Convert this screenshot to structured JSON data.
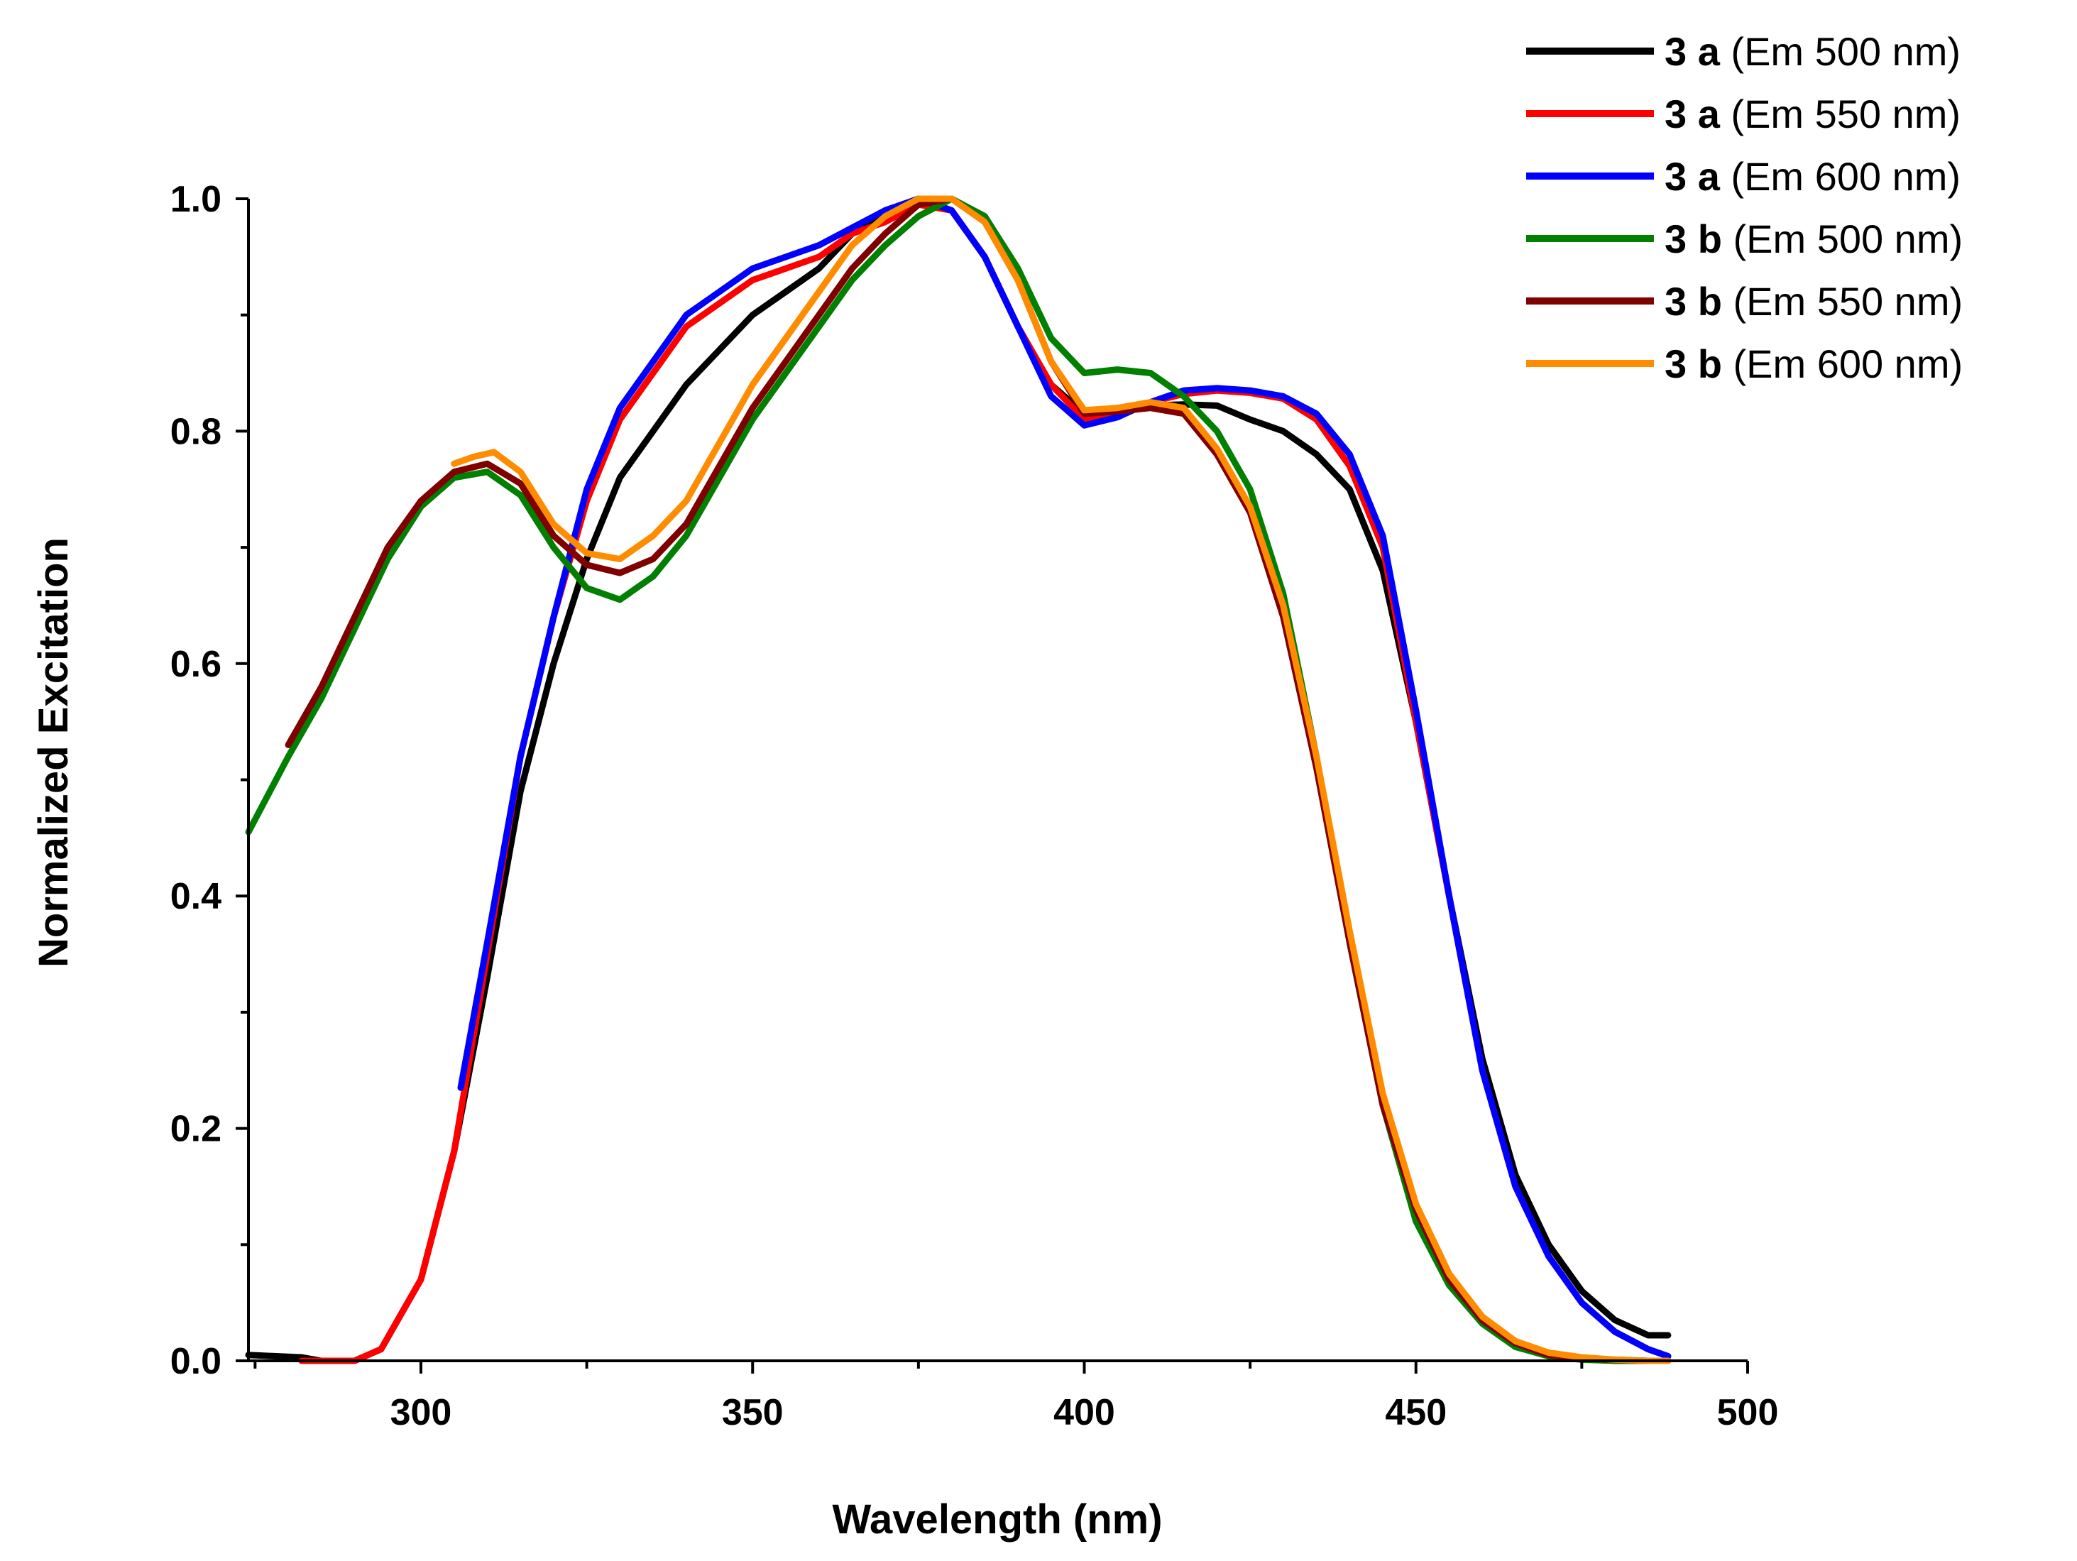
{
  "chart_data": {
    "type": "line",
    "title": "",
    "xlabel": "Wavelength (nm)",
    "ylabel": "Normalized Excitation",
    "xlim": [
      274,
      500
    ],
    "ylim": [
      0,
      1.0
    ],
    "x_ticks": [
      300,
      350,
      400,
      450,
      500
    ],
    "y_ticks": [
      0.0,
      0.2,
      0.4,
      0.6,
      0.8,
      1.0
    ],
    "x_tick_labels": [
      "300",
      "350",
      "400",
      "450",
      "500"
    ],
    "y_tick_labels": [
      "0.0",
      "0.2",
      "0.4",
      "0.6",
      "0.8",
      "1.0"
    ],
    "grid": false,
    "legend_position": "top-right",
    "series": [
      {
        "name": "3 a (Em 500 nm)",
        "compound": "3 a",
        "condition": "(Em 500 nm)",
        "color": "#000000",
        "x": [
          274,
          282,
          285,
          290,
          294,
          297,
          300,
          305,
          310,
          315,
          320,
          325,
          330,
          335,
          340,
          345,
          350,
          355,
          360,
          365,
          370,
          375,
          380,
          385,
          390,
          395,
          400,
          405,
          410,
          415,
          420,
          425,
          430,
          435,
          440,
          445,
          450,
          455,
          460,
          465,
          470,
          475,
          480,
          485,
          488
        ],
        "y": [
          0.005,
          0.003,
          0.0,
          0.0,
          0.01,
          0.04,
          0.07,
          0.18,
          0.33,
          0.49,
          0.6,
          0.69,
          0.76,
          0.8,
          0.84,
          0.87,
          0.9,
          0.92,
          0.94,
          0.97,
          0.99,
          1.0,
          0.99,
          0.95,
          0.89,
          0.84,
          0.815,
          0.82,
          0.822,
          0.823,
          0.822,
          0.81,
          0.8,
          0.78,
          0.75,
          0.68,
          0.55,
          0.4,
          0.26,
          0.16,
          0.1,
          0.06,
          0.035,
          0.022,
          0.022
        ]
      },
      {
        "name": "3 a (Em 550 nm)",
        "compound": "3 a",
        "condition": "(Em 550 nm)",
        "color": "#ff0000",
        "x": [
          282,
          285,
          290,
          294,
          297,
          300,
          305,
          310,
          315,
          320,
          325,
          330,
          335,
          340,
          345,
          350,
          355,
          360,
          365,
          370,
          375,
          380,
          385,
          390,
          395,
          400,
          405,
          410,
          415,
          420,
          425,
          430,
          435,
          440,
          445,
          450,
          455,
          460,
          465,
          470,
          475,
          480,
          485,
          488
        ],
        "y": [
          0.0,
          0.0,
          0.0,
          0.01,
          0.04,
          0.07,
          0.18,
          0.35,
          0.52,
          0.64,
          0.74,
          0.81,
          0.85,
          0.89,
          0.91,
          0.93,
          0.94,
          0.95,
          0.97,
          0.98,
          0.995,
          0.99,
          0.95,
          0.89,
          0.84,
          0.81,
          0.815,
          0.825,
          0.832,
          0.835,
          0.833,
          0.828,
          0.81,
          0.77,
          0.7,
          0.55,
          0.4,
          0.25,
          0.15,
          0.09,
          0.05,
          0.025,
          0.01,
          0.004
        ]
      },
      {
        "name": "3 a (Em 600 nm)",
        "compound": "3 a",
        "condition": "(Em 600 nm)",
        "color": "#0000ff",
        "x": [
          306,
          310,
          315,
          320,
          325,
          330,
          335,
          340,
          345,
          350,
          355,
          360,
          365,
          370,
          375,
          380,
          385,
          390,
          395,
          400,
          405,
          410,
          415,
          420,
          425,
          430,
          435,
          440,
          445,
          450,
          455,
          460,
          465,
          470,
          475,
          480,
          485,
          488
        ],
        "y": [
          0.235,
          0.36,
          0.52,
          0.64,
          0.75,
          0.82,
          0.86,
          0.9,
          0.92,
          0.94,
          0.95,
          0.96,
          0.975,
          0.99,
          1.0,
          0.99,
          0.95,
          0.89,
          0.83,
          0.805,
          0.812,
          0.825,
          0.835,
          0.837,
          0.835,
          0.83,
          0.815,
          0.78,
          0.71,
          0.56,
          0.4,
          0.25,
          0.15,
          0.09,
          0.05,
          0.025,
          0.01,
          0.004
        ]
      },
      {
        "name": "3 b (Em 500 nm)",
        "compound": "3 b",
        "condition": "(Em 500 nm)",
        "color": "#007f00",
        "x": [
          274,
          280,
          285,
          290,
          295,
          300,
          305,
          310,
          315,
          320,
          325,
          330,
          335,
          340,
          345,
          350,
          355,
          360,
          365,
          370,
          375,
          380,
          385,
          390,
          395,
          400,
          405,
          410,
          415,
          420,
          425,
          430,
          435,
          440,
          445,
          450,
          455,
          460,
          465,
          470,
          475,
          480,
          485,
          488
        ],
        "y": [
          0.455,
          0.52,
          0.57,
          0.63,
          0.69,
          0.735,
          0.76,
          0.765,
          0.745,
          0.7,
          0.665,
          0.655,
          0.675,
          0.71,
          0.76,
          0.81,
          0.85,
          0.89,
          0.93,
          0.96,
          0.985,
          1.0,
          0.985,
          0.94,
          0.88,
          0.85,
          0.853,
          0.85,
          0.83,
          0.8,
          0.75,
          0.66,
          0.52,
          0.36,
          0.22,
          0.12,
          0.065,
          0.032,
          0.012,
          0.004,
          0.001,
          0.0,
          0.0,
          0.0
        ]
      },
      {
        "name": "3 b (Em 550 nm)",
        "compound": "3 b",
        "condition": "(Em 550 nm)",
        "color": "#800000",
        "x": [
          280,
          285,
          290,
          295,
          300,
          305,
          310,
          315,
          320,
          325,
          330,
          335,
          340,
          345,
          350,
          355,
          360,
          365,
          370,
          375,
          380,
          385,
          390,
          395,
          400,
          405,
          410,
          415,
          420,
          425,
          430,
          435,
          440,
          445,
          450,
          455,
          460,
          465,
          470,
          475,
          480,
          485,
          488
        ],
        "y": [
          0.53,
          0.58,
          0.64,
          0.7,
          0.74,
          0.765,
          0.772,
          0.755,
          0.71,
          0.685,
          0.678,
          0.69,
          0.72,
          0.77,
          0.82,
          0.86,
          0.9,
          0.94,
          0.97,
          0.995,
          1.0,
          0.98,
          0.93,
          0.86,
          0.815,
          0.817,
          0.82,
          0.815,
          0.78,
          0.73,
          0.64,
          0.51,
          0.36,
          0.22,
          0.13,
          0.07,
          0.035,
          0.015,
          0.005,
          0.002,
          0.001,
          0.0,
          0.0
        ]
      },
      {
        "name": "3 b (Em 600 nm)",
        "compound": "3 b",
        "condition": "(Em 600 nm)",
        "color": "#ff8c00",
        "x": [
          305,
          308,
          311,
          315,
          320,
          325,
          330,
          335,
          340,
          345,
          350,
          355,
          360,
          365,
          370,
          375,
          380,
          385,
          390,
          395,
          400,
          405,
          410,
          415,
          420,
          425,
          430,
          435,
          440,
          445,
          450,
          455,
          460,
          465,
          470,
          475,
          480,
          485,
          488
        ],
        "y": [
          0.772,
          0.778,
          0.782,
          0.765,
          0.72,
          0.695,
          0.69,
          0.71,
          0.74,
          0.79,
          0.84,
          0.88,
          0.92,
          0.96,
          0.985,
          1.0,
          1.0,
          0.98,
          0.93,
          0.86,
          0.818,
          0.82,
          0.825,
          0.82,
          0.785,
          0.735,
          0.65,
          0.52,
          0.37,
          0.23,
          0.135,
          0.075,
          0.038,
          0.017,
          0.007,
          0.003,
          0.001,
          0.0,
          0.0
        ]
      }
    ]
  }
}
